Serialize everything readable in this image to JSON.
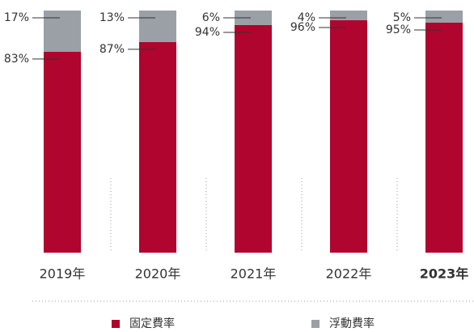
{
  "chart_data": {
    "type": "stacked_bar",
    "categories": [
      "2019年",
      "2020年",
      "2021年",
      "2022年",
      "2023年"
    ],
    "highlight_index": 4,
    "ylim": [
      0,
      100
    ],
    "series": [
      {
        "name": "固定費率",
        "color": "#b0052e",
        "values": [
          83,
          87,
          94,
          96,
          95
        ],
        "value_labels": [
          "83%",
          "87%",
          "94%",
          "96%",
          "95%"
        ]
      },
      {
        "name": "浮動費率",
        "color": "#9aa0a6",
        "values": [
          17,
          13,
          6,
          4,
          5
        ],
        "value_labels": [
          "17%",
          "13%",
          "6%",
          "4%",
          "5%"
        ]
      }
    ]
  }
}
